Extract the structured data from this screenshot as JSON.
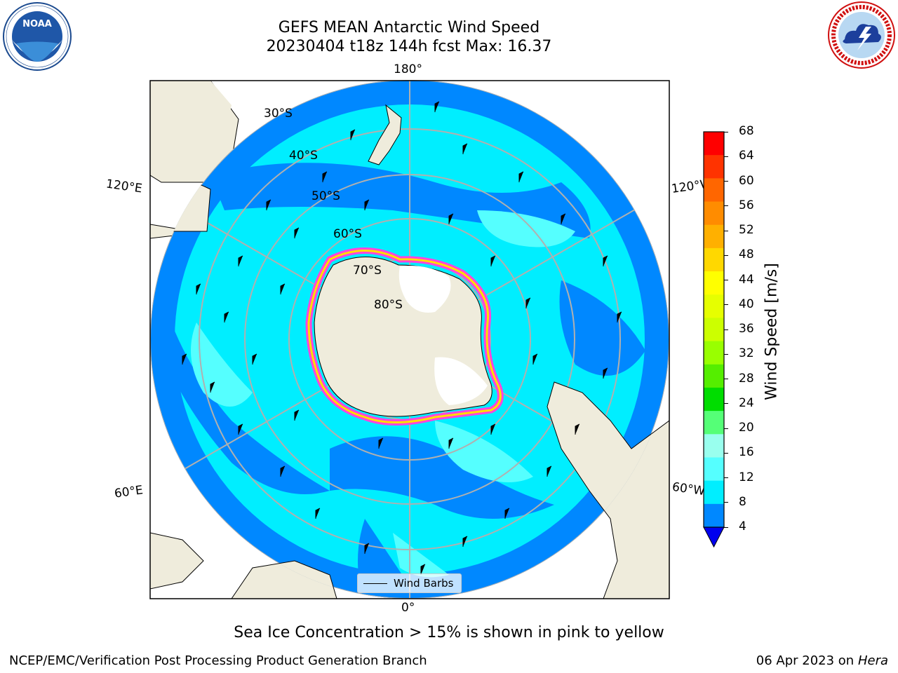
{
  "header": {
    "title_line1": "GEFS MEAN Antarctic Wind Speed",
    "title_line2": "20230404 t18z 144h fcst   Max: 16.37"
  },
  "logos": {
    "left_text": "NOAA",
    "left_ring_text": "NATIONAL OCEANIC AND ATMOSPHERIC ADMINISTRATION · U.S. DEPARTMENT OF COMMERCE",
    "right_ring_text": "NATIONAL WEATHER SERVICE"
  },
  "map": {
    "lon_labels": {
      "top": "180°",
      "upper_left": "120°E",
      "upper_right": "120°W",
      "lower_left": "60°E",
      "lower_right": "60°W",
      "bottom": "0°"
    },
    "lat_labels": [
      "30°S",
      "40°S",
      "50°S",
      "60°S",
      "70°S",
      "80°S"
    ],
    "legend_label": "Wind Barbs"
  },
  "colorbar": {
    "label": "Wind Speed [m/s]",
    "ticks": [
      "68",
      "64",
      "60",
      "56",
      "52",
      "48",
      "44",
      "40",
      "36",
      "32",
      "28",
      "24",
      "20",
      "16",
      "12",
      "8",
      "4"
    ],
    "colors": [
      "#ff0000",
      "#ff3300",
      "#ff6600",
      "#ff8c00",
      "#ffb000",
      "#ffd800",
      "#ffff00",
      "#e6ff00",
      "#ccff00",
      "#99ff00",
      "#55ee00",
      "#00dd00",
      "#55ff77",
      "#99ffee",
      "#55ffff",
      "#00eeff",
      "#0088ff"
    ],
    "extend_color": "#0000ee"
  },
  "caption": "Sea Ice Concentration > 15% is shown in pink to yellow",
  "footer": {
    "left": "NCEP/EMC/Verification Post Processing Product Generation Branch",
    "right_date": "06 Apr 2023 on ",
    "right_machine": "Hera"
  }
}
